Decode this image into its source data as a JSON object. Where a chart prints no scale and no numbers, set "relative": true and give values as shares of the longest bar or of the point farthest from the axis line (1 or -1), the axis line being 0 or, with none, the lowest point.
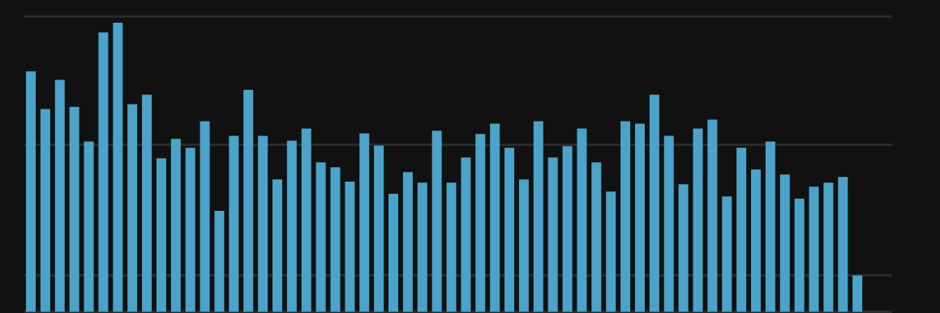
{
  "chart_data": {
    "type": "bar",
    "relative": true,
    "color": "#4ba3c9",
    "categories": [
      null,
      null,
      null,
      null,
      null,
      null,
      null,
      null,
      null,
      null,
      null,
      null,
      null,
      null,
      null,
      null,
      null,
      null,
      null,
      null,
      null,
      null,
      null,
      null,
      null,
      null,
      null,
      null,
      null,
      null,
      null,
      null,
      null,
      null,
      null,
      null,
      null,
      null,
      null,
      null,
      null,
      null,
      null,
      null,
      null,
      null,
      null,
      null,
      null,
      null,
      null,
      null,
      null,
      null,
      null,
      null,
      null,
      null
    ],
    "values": [
      0.832,
      0.701,
      0.802,
      0.709,
      0.589,
      0.966,
      1.0,
      0.718,
      0.751,
      0.531,
      0.598,
      0.567,
      0.659,
      0.349,
      0.609,
      0.768,
      0.609,
      0.458,
      0.592,
      0.634,
      0.517,
      0.5,
      0.45,
      0.617,
      0.575,
      0.408,
      0.483,
      0.447,
      0.626,
      0.447,
      0.534,
      0.615,
      0.651,
      0.567,
      0.458,
      0.659,
      0.534,
      0.573,
      0.634,
      0.517,
      0.416,
      0.659,
      0.651,
      0.751,
      0.609,
      0.441,
      0.634,
      0.665,
      0.399,
      0.567,
      0.492,
      0.589,
      0.475,
      0.391,
      0.433,
      0.447,
      0.466,
      0.126
    ],
    "ref_lines": [
      {
        "axis": "y",
        "value": 1.022,
        "color": "#2a2a2a"
      },
      {
        "axis": "y",
        "value": 0.578,
        "color": "#2a2a2a"
      },
      {
        "axis": "y",
        "value": 0.126,
        "color": "#2a2a2a"
      }
    ]
  }
}
